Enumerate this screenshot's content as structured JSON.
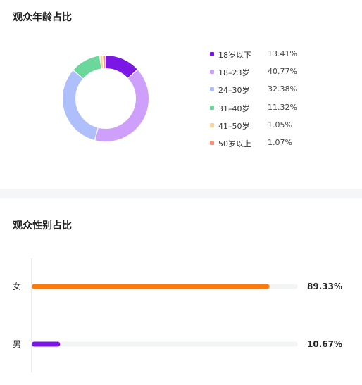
{
  "chart_data": [
    {
      "type": "pie",
      "title": "观众年龄占比",
      "series": [
        {
          "label": "18岁以下",
          "value": 13.41,
          "value_text": "13.41%",
          "color": "#7a17e5"
        },
        {
          "label": "18–23岁",
          "value": 40.77,
          "value_text": "40.77%",
          "color": "#cf9ffc"
        },
        {
          "label": "24–30岁",
          "value": 32.38,
          "value_text": "32.38%",
          "color": "#aebffc"
        },
        {
          "label": "31–40岁",
          "value": 11.32,
          "value_text": "11.32%",
          "color": "#6cd79b"
        },
        {
          "label": "41–50岁",
          "value": 1.05,
          "value_text": "1.05%",
          "color": "#fbd49b"
        },
        {
          "label": "50岁以上",
          "value": 1.07,
          "value_text": "1.07%",
          "color": "#f59476"
        }
      ],
      "legend_position": "right"
    },
    {
      "type": "bar",
      "orientation": "horizontal",
      "title": "观众性别占比",
      "categories": [
        "女",
        "男"
      ],
      "values": [
        89.33,
        10.67
      ],
      "value_labels": [
        "89.33%",
        "10.67%"
      ],
      "colors": [
        "#fd7a0b",
        "#7a17e5"
      ],
      "track_color": "#f3f4f6",
      "xlim": [
        0,
        100
      ]
    }
  ]
}
